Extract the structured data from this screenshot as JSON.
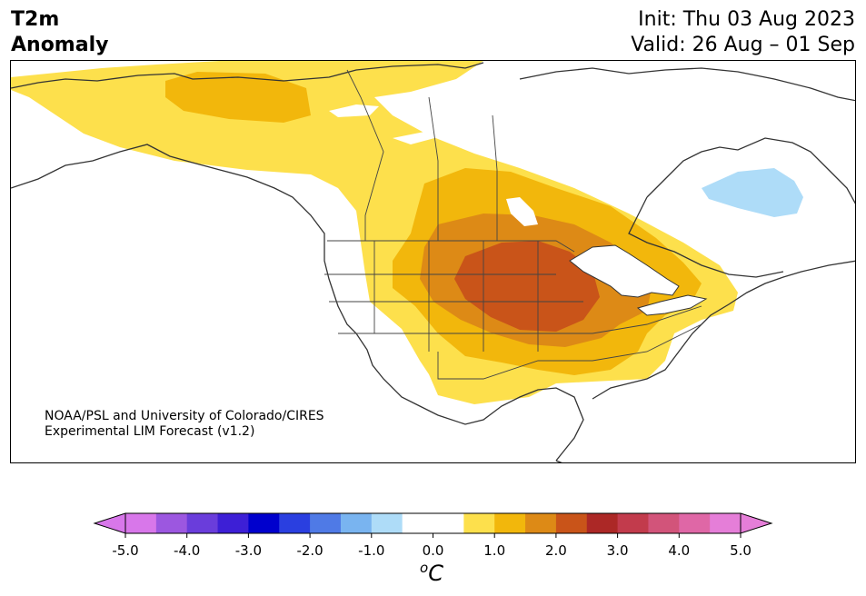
{
  "title": {
    "left_line1": "T2m",
    "left_line2": "Anomaly",
    "init": "Init: Thu 03 Aug 2023",
    "valid": "Valid: 26 Aug – 01 Sep"
  },
  "credit": {
    "line1": "NOAA/PSL and University of Colorado/CIRES",
    "line2": "Experimental LIM Forecast (v1.2)"
  },
  "colorbar": {
    "unit_sup": "o",
    "unit": "C",
    "ticks": [
      "-5.0",
      "-4.0",
      "-3.0",
      "-2.0",
      "-1.0",
      "0.0",
      "1.0",
      "2.0",
      "3.0",
      "4.0",
      "5.0"
    ],
    "extend_low_color": "#d877ea",
    "extend_high_color": "#e57ed8",
    "colors": [
      "#d877ea",
      "#9c57e0",
      "#6a3ddb",
      "#3d1fd6",
      "#0000cd",
      "#2a3fe0",
      "#4f7ae6",
      "#79b4f0",
      "#aedcf8",
      "#ffffff",
      "#ffffff",
      "#fde04c",
      "#f2b70c",
      "#dd8a16",
      "#c95419",
      "#ac2826",
      "#c23b4c",
      "#d2547a",
      "#df67a6",
      "#e57ed8"
    ]
  },
  "map": {
    "anomaly_regions": [
      {
        "level": "+0.5 to +1.0",
        "color": "#fde04c"
      },
      {
        "level": "+1.0 to +1.5",
        "color": "#f2b70c"
      },
      {
        "level": "+1.5 to +2.0",
        "color": "#dd8a16"
      },
      {
        "level": "+2.0 to +2.5",
        "color": "#c95419"
      },
      {
        "level": "-1.0 to -0.5",
        "color": "#aedcf8"
      }
    ]
  }
}
